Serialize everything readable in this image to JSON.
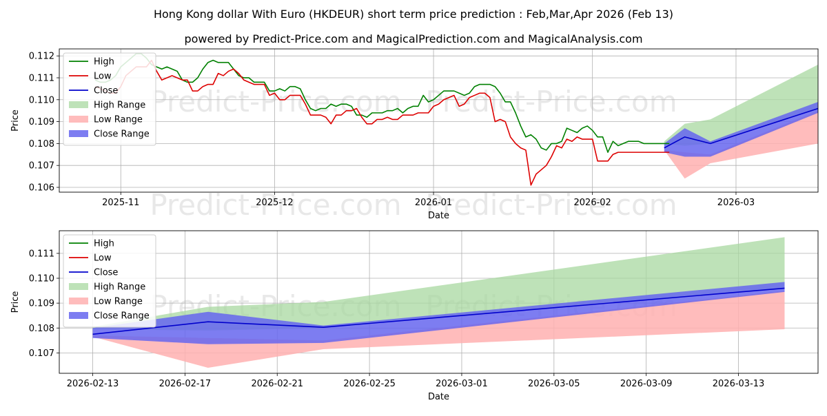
{
  "title": "Hong Kong dollar With Euro (HKDEUR) short term price prediction : Feb,Mar,Apr 2026 (Feb 13)",
  "subtitle": "powered by Predict-Price.com and MagicalPrediction.com and MagicalAnalysis.com",
  "watermark": "Predict-Price.com",
  "colors": {
    "high": "#008000",
    "low": "#dd0000",
    "close": "#0000cc",
    "high_range": "#a8d8a0",
    "low_range": "#ffb0b0",
    "close_range": "#6666ee"
  },
  "chart_data": [
    {
      "type": "line",
      "xlabel": "Date",
      "ylabel": "Price",
      "x_ticks": [
        "2025-11",
        "2025-12",
        "2026-01",
        "2026-02",
        "2026-03"
      ],
      "x_tick_days": [
        31,
        61,
        92,
        123,
        151
      ],
      "y_ticks": [
        "0.106",
        "0.107",
        "0.108",
        "0.109",
        "0.110",
        "0.111",
        "0.112"
      ],
      "y_tick_values": [
        0.106,
        0.107,
        0.108,
        0.109,
        0.11,
        0.111,
        0.112
      ],
      "xlim": [
        19,
        167
      ],
      "ylim": [
        0.10578,
        0.11232
      ],
      "legend": [
        "High",
        "Low",
        "Close",
        "High Range",
        "Low Range",
        "Close Range"
      ],
      "x_days": [
        26,
        27,
        28,
        29,
        30,
        31,
        32,
        33,
        34,
        35,
        36,
        37,
        38,
        39,
        40,
        41,
        42,
        43,
        44,
        45,
        46,
        47,
        48,
        49,
        50,
        51,
        52,
        53,
        54,
        55,
        56,
        57,
        58,
        59,
        60,
        61,
        62,
        63,
        64,
        65,
        66,
        67,
        68,
        69,
        70,
        71,
        72,
        73,
        74,
        75,
        76,
        77,
        78,
        79,
        80,
        81,
        82,
        83,
        84,
        85,
        86,
        87,
        88,
        89,
        90,
        91,
        92,
        93,
        94,
        95,
        96,
        97,
        98,
        99,
        100,
        101,
        102,
        103,
        104,
        105,
        106,
        107,
        108,
        109,
        110,
        111,
        112,
        113,
        114,
        115,
        116,
        117,
        118,
        119,
        120,
        121,
        122,
        123,
        124,
        125,
        126,
        127,
        128,
        129,
        130,
        131,
        132,
        133,
        134,
        135,
        136,
        137,
        138
      ],
      "series": [
        {
          "name": "High",
          "values": [
            0.1109,
            0.1108,
            0.1108,
            0.1109,
            0.1111,
            0.1115,
            0.1117,
            0.1119,
            0.1121,
            0.1121,
            0.1119,
            0.1116,
            0.1115,
            0.1114,
            0.1115,
            0.1114,
            0.1113,
            0.1109,
            0.1108,
            0.1108,
            0.111,
            0.1114,
            0.1117,
            0.1118,
            0.1117,
            0.1117,
            0.1117,
            0.1114,
            0.1111,
            0.111,
            0.111,
            0.1108,
            0.1108,
            0.1108,
            0.1104,
            0.1104,
            0.1105,
            0.1104,
            0.1106,
            0.1106,
            0.1105,
            0.11,
            0.1096,
            0.1095,
            0.1096,
            0.1096,
            0.1098,
            0.1097,
            0.1098,
            0.1098,
            0.1097,
            0.1093,
            0.1093,
            0.1092,
            0.1094,
            0.1094,
            0.1094,
            0.1095,
            0.1095,
            0.1096,
            0.1094,
            0.1096,
            0.1097,
            0.1097,
            0.1102,
            0.1099,
            0.11,
            0.1102,
            0.1104,
            0.1104,
            0.1104,
            0.1103,
            0.1102,
            0.1103,
            0.1106,
            0.1107,
            0.1107,
            0.1107,
            0.1106,
            0.1103,
            0.1099,
            0.1099,
            0.1094,
            0.1088,
            0.1083,
            0.1084,
            0.1082,
            0.1078,
            0.1077,
            0.108,
            0.108,
            0.1081,
            0.1087,
            0.1086,
            0.1085,
            0.1087,
            0.1088,
            0.1086,
            0.1083,
            0.1083,
            0.1076,
            0.1081,
            0.1079,
            0.108,
            0.1081,
            0.1081,
            0.1081,
            0.108,
            0.108,
            0.108,
            0.108,
            0.108,
            0.108
          ]
        },
        {
          "name": "Low",
          "values": [
            0.1106,
            0.1105,
            0.1104,
            0.1103,
            0.1103,
            0.1106,
            0.1111,
            0.1113,
            0.1115,
            0.1115,
            0.1115,
            0.1118,
            0.1113,
            0.1109,
            0.111,
            0.1111,
            0.111,
            0.1109,
            0.1109,
            0.1104,
            0.1104,
            0.1106,
            0.1107,
            0.1107,
            0.1112,
            0.1111,
            0.1113,
            0.1114,
            0.1112,
            0.1109,
            0.1108,
            0.1107,
            0.1107,
            0.1107,
            0.1102,
            0.1103,
            0.11,
            0.11,
            0.1102,
            0.1102,
            0.1102,
            0.1098,
            0.1093,
            0.1093,
            0.1093,
            0.1092,
            0.1089,
            0.1093,
            0.1093,
            0.1095,
            0.1095,
            0.1096,
            0.1092,
            0.1089,
            0.1089,
            0.1091,
            0.1091,
            0.1092,
            0.1091,
            0.1091,
            0.1093,
            0.1093,
            0.1093,
            0.1094,
            0.1094,
            0.1094,
            0.1097,
            0.1098,
            0.11,
            0.1101,
            0.1102,
            0.1097,
            0.1098,
            0.1101,
            0.1102,
            0.1103,
            0.1103,
            0.1101,
            0.109,
            0.1091,
            0.109,
            0.1083,
            0.108,
            0.1078,
            0.1077,
            0.1061,
            0.1066,
            0.1068,
            0.107,
            0.1074,
            0.1079,
            0.1078,
            0.1082,
            0.1081,
            0.1083,
            0.1082,
            0.1082,
            0.1082,
            0.1072,
            0.1072,
            0.1072,
            0.1075,
            0.1076,
            0.1076,
            0.1076,
            0.1076,
            0.1076,
            0.1076,
            0.1076,
            0.1076,
            0.1076,
            0.1076,
            0.1076
          ]
        }
      ],
      "forecast": {
        "x_days": [
          137,
          141,
          146,
          167
        ],
        "high_range": {
          "upper": [
            0.1081,
            0.1089,
            0.1091,
            0.1116
          ],
          "lower": [
            0.108,
            0.1079,
            0.108,
            0.1096
          ]
        },
        "low_range": {
          "upper": [
            0.1077,
            0.1076,
            0.1075,
            0.1095
          ],
          "lower": [
            0.1077,
            0.1064,
            0.1071,
            0.108
          ]
        },
        "close_range": {
          "upper": [
            0.108,
            0.1087,
            0.1081,
            0.1099
          ],
          "lower": [
            0.1076,
            0.1074,
            0.1074,
            0.1094
          ]
        },
        "close": [
          0.1078,
          0.1083,
          0.108,
          0.1096
        ]
      }
    },
    {
      "type": "line",
      "xlabel": "Date",
      "ylabel": "Price",
      "x_ticks": [
        "2026-02-13",
        "2026-02-17",
        "2026-02-21",
        "2026-02-25",
        "2026-03-01",
        "2026-03-05",
        "2026-03-09",
        "2026-03-13"
      ],
      "x_tick_days": [
        0,
        4,
        8,
        12,
        16,
        20,
        24,
        28
      ],
      "y_ticks": [
        "0.107",
        "0.108",
        "0.109",
        "0.110",
        "0.111"
      ],
      "y_tick_values": [
        0.107,
        0.108,
        0.109,
        0.11,
        0.111
      ],
      "xlim": [
        -1.45,
        31.45
      ],
      "ylim": [
        0.10618,
        0.11191
      ],
      "legend": [
        "High",
        "Low",
        "Close",
        "High Range",
        "Low Range",
        "Close Range"
      ],
      "forecast": {
        "x_days": [
          0,
          5,
          10,
          30
        ],
        "high_range": {
          "upper": [
            0.10805,
            0.10885,
            0.10905,
            0.11165
          ],
          "lower": [
            0.10795,
            0.1079,
            0.108,
            0.1096
          ]
        },
        "low_range": {
          "upper": [
            0.1077,
            0.1076,
            0.1075,
            0.1095
          ],
          "lower": [
            0.10765,
            0.1064,
            0.10715,
            0.10795
          ]
        },
        "close_range": {
          "upper": [
            0.108,
            0.10865,
            0.1081,
            0.10985
          ],
          "lower": [
            0.1076,
            0.10735,
            0.1074,
            0.10945
          ]
        },
        "close": [
          0.10775,
          0.10825,
          0.10803,
          0.1096
        ]
      }
    }
  ]
}
